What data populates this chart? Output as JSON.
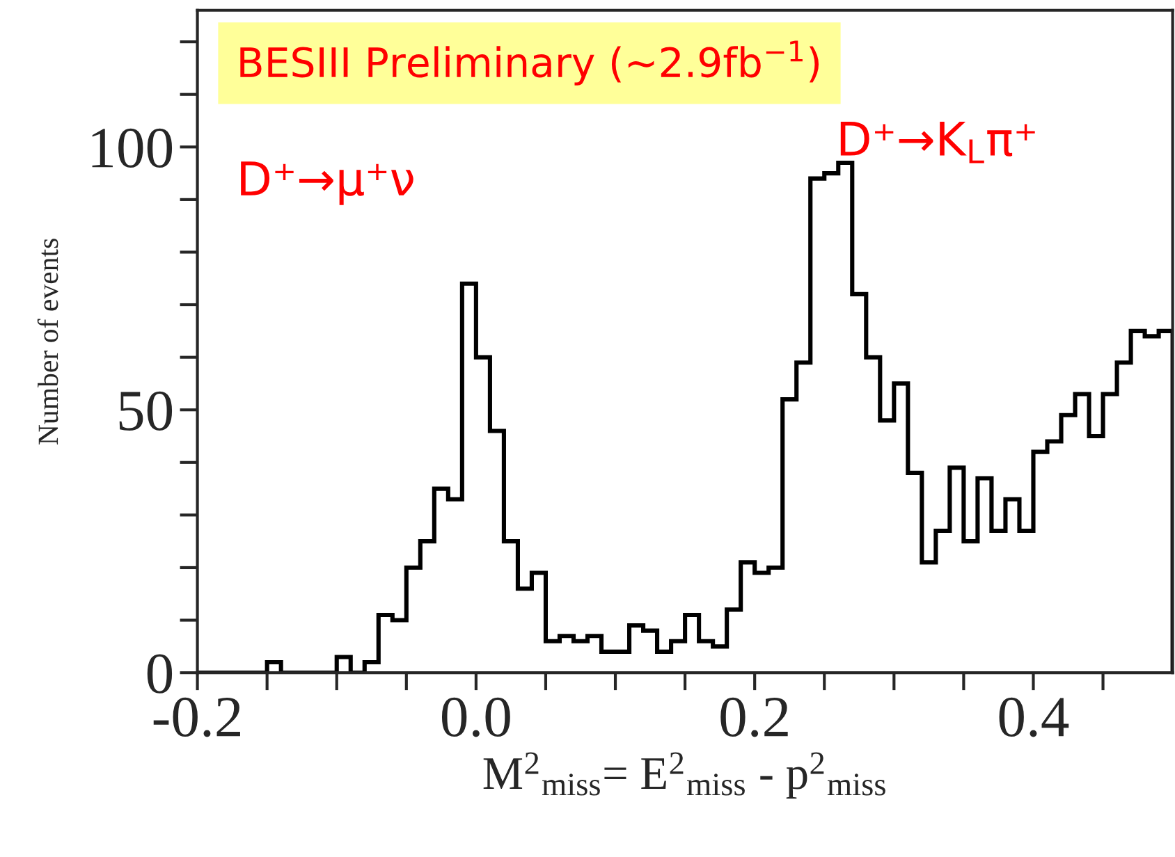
{
  "chart_data": {
    "type": "histogram",
    "title": "BESIII Preliminary (~2.9fb$^{−1}$)",
    "xlabel": "M$^{2}$$_{miss}$= E$^{2}$$_{miss}$ - p$^{2}$$_{miss}$",
    "ylabel": "Number of events",
    "annotations": [
      "D⁺→μ⁺ν",
      "D⁺→K$_{L}$π⁺"
    ],
    "bins": [
      -0.2,
      -0.19,
      -0.18,
      -0.17,
      -0.16,
      -0.15,
      -0.14,
      -0.13,
      -0.12,
      -0.11,
      -0.1,
      -0.09,
      -0.08,
      -0.07,
      -0.06,
      -0.05,
      -0.04,
      -0.03,
      -0.02,
      -0.01,
      0.0,
      0.01,
      0.02,
      0.03,
      0.04,
      0.05,
      0.06,
      0.07,
      0.08,
      0.09,
      0.1,
      0.11,
      0.12,
      0.13,
      0.14,
      0.15,
      0.16,
      0.17,
      0.18,
      0.19,
      0.2,
      0.21,
      0.22,
      0.23,
      0.24,
      0.25,
      0.26,
      0.27,
      0.28,
      0.29,
      0.3,
      0.31,
      0.32,
      0.33,
      0.34,
      0.35,
      0.36,
      0.37,
      0.38,
      0.39,
      0.4,
      0.41,
      0.42,
      0.43,
      0.44,
      0.45,
      0.46,
      0.47,
      0.48,
      0.49,
      0.5
    ],
    "values": [
      0,
      0,
      0,
      0,
      0,
      2,
      0,
      0,
      0,
      0,
      3,
      0,
      2,
      11,
      10,
      20,
      25,
      35,
      33,
      74,
      60,
      46,
      25,
      16,
      19,
      6,
      7,
      6,
      7,
      4,
      4,
      9,
      8,
      4,
      6,
      11,
      6,
      5,
      12,
      21,
      19,
      20,
      52,
      59,
      94,
      95,
      97,
      72,
      60,
      48,
      55,
      38,
      21,
      27,
      39,
      25,
      37,
      27,
      33,
      27,
      42,
      44,
      49,
      53,
      45,
      53,
      59,
      65,
      64,
      65
    ],
    "color": "#000000",
    "xlim": [
      -0.2,
      0.5
    ],
    "xticks": [
      -0.2,
      {
        "value": -0.15,
        "label": null
      },
      {
        "value": -0.1,
        "label": null
      },
      {
        "value": -0.05,
        "label": null
      },
      {
        "value": 0.0,
        "label": "0.0"
      },
      {
        "value": 0.05,
        "label": null
      },
      {
        "value": 0.1,
        "label": null
      },
      {
        "value": 0.15,
        "label": null
      },
      0.2,
      {
        "value": 0.25,
        "label": null
      },
      {
        "value": 0.3,
        "label": null
      },
      {
        "value": 0.35,
        "label": null
      },
      0.4,
      {
        "value": 0.45,
        "label": null
      }
    ],
    "ylim": [
      0,
      126
    ],
    "yticks": [
      0,
      {
        "value": 10,
        "label": null
      },
      {
        "value": 20,
        "label": null
      },
      {
        "value": 30,
        "label": null
      },
      {
        "value": 40,
        "label": null
      },
      50,
      {
        "value": 60,
        "label": null
      },
      {
        "value": 70,
        "label": null
      },
      {
        "value": 80,
        "label": null
      },
      {
        "value": 90,
        "label": null
      },
      100,
      {
        "value": 110,
        "label": null
      },
      {
        "value": 120,
        "label": null
      }
    ],
    "grid": false,
    "legend": false
  }
}
